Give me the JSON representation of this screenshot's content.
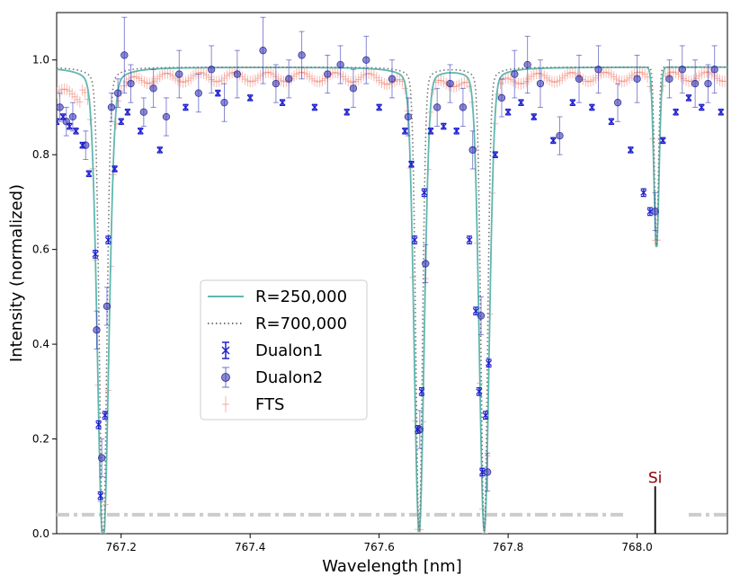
{
  "chart_data": {
    "type": "line",
    "title": "",
    "xlabel": "Wavelength [nm]",
    "ylabel": "Intensity (normalized)",
    "xlim": [
      767.1,
      768.14
    ],
    "ylim": [
      0.0,
      1.1
    ],
    "x_ticks": [
      767.2,
      767.4,
      767.6,
      767.8,
      768.0
    ],
    "x_tick_labels": [
      "767.2",
      "767.4",
      "767.6",
      "767.8",
      "768.0"
    ],
    "y_ticks": [
      0.0,
      0.2,
      0.4,
      0.6,
      0.8,
      1.0
    ],
    "y_tick_labels": [
      "0.0",
      "0.2",
      "0.4",
      "0.6",
      "0.8",
      "1.0"
    ],
    "grid": false,
    "legend_position": "center-left",
    "lines_model": {
      "continuum": 0.985,
      "absorption_lines": [
        {
          "center": 767.172,
          "depth": 0.95,
          "width_250k": 0.0085,
          "width_700k": 0.0055,
          "wing": 0.06
        },
        {
          "center": 767.662,
          "depth": 0.93,
          "width_250k": 0.0075,
          "width_700k": 0.005,
          "wing": 0.05
        },
        {
          "center": 767.763,
          "depth": 0.93,
          "width_250k": 0.0075,
          "width_700k": 0.005,
          "wing": 0.05
        },
        {
          "center": 768.03,
          "depth": 0.38,
          "width_250k": 0.004,
          "width_700k": 0.003,
          "wing": 0.0
        }
      ]
    },
    "series": [
      {
        "name": "R=250,000",
        "kind": "line",
        "color": "#5fb8b0",
        "style": "solid",
        "model_width": "width_250k",
        "step_at": 768.01,
        "post_step_continuum": 0.985,
        "pre_step_continuum": 0.985
      },
      {
        "name": "R=700,000",
        "kind": "line",
        "color": "#777777",
        "style": "dotted",
        "model_width": "width_700k"
      },
      {
        "name": "Dualon1",
        "kind": "errorbar",
        "color": "#1f1fd0",
        "marker": "x",
        "x": [
          767.1,
          767.11,
          767.12,
          767.13,
          767.14,
          767.15,
          767.16,
          767.165,
          767.168,
          767.175,
          767.18,
          767.19,
          767.2,
          767.21,
          767.23,
          767.26,
          767.3,
          767.35,
          767.4,
          767.45,
          767.5,
          767.55,
          767.6,
          767.64,
          767.65,
          767.655,
          767.66,
          767.666,
          767.67,
          767.68,
          767.7,
          767.72,
          767.74,
          767.75,
          767.755,
          767.76,
          767.765,
          767.77,
          767.78,
          767.8,
          767.82,
          767.84,
          767.87,
          767.9,
          767.93,
          767.96,
          767.99,
          768.01,
          768.02,
          768.04,
          768.06,
          768.08,
          768.1,
          768.13
        ],
        "y": [
          0.87,
          0.88,
          0.86,
          0.85,
          0.82,
          0.76,
          0.59,
          0.23,
          0.08,
          0.25,
          0.62,
          0.77,
          0.87,
          0.89,
          0.85,
          0.81,
          0.9,
          0.93,
          0.92,
          0.91,
          0.9,
          0.89,
          0.9,
          0.85,
          0.78,
          0.62,
          0.22,
          0.3,
          0.72,
          0.85,
          0.86,
          0.85,
          0.62,
          0.47,
          0.3,
          0.13,
          0.25,
          0.36,
          0.8,
          0.89,
          0.91,
          0.88,
          0.83,
          0.91,
          0.9,
          0.87,
          0.81,
          0.72,
          0.68,
          0.83,
          0.89,
          0.92,
          0.9,
          0.89
        ],
        "yerr": [
          0.006,
          0.006,
          0.006,
          0.006,
          0.006,
          0.006,
          0.008,
          0.008,
          0.008,
          0.008,
          0.008,
          0.006,
          0.006,
          0.006,
          0.006,
          0.006,
          0.006,
          0.006,
          0.006,
          0.006,
          0.006,
          0.006,
          0.006,
          0.006,
          0.006,
          0.008,
          0.008,
          0.008,
          0.008,
          0.006,
          0.006,
          0.006,
          0.008,
          0.008,
          0.008,
          0.008,
          0.008,
          0.008,
          0.006,
          0.006,
          0.006,
          0.006,
          0.006,
          0.006,
          0.006,
          0.006,
          0.006,
          0.008,
          0.008,
          0.006,
          0.006,
          0.006,
          0.006,
          0.006
        ]
      },
      {
        "name": "Dualon2",
        "kind": "errorbar",
        "color": "#3a3ab8",
        "marker": "o",
        "x": [
          767.105,
          767.115,
          767.125,
          767.145,
          767.162,
          767.17,
          767.178,
          767.185,
          767.195,
          767.205,
          767.215,
          767.235,
          767.25,
          767.27,
          767.29,
          767.32,
          767.34,
          767.36,
          767.38,
          767.42,
          767.44,
          767.46,
          767.48,
          767.52,
          767.54,
          767.56,
          767.58,
          767.62,
          767.645,
          767.663,
          767.672,
          767.69,
          767.71,
          767.73,
          767.745,
          767.758,
          767.768,
          767.79,
          767.81,
          767.83,
          767.85,
          767.88,
          767.91,
          767.94,
          767.97,
          768.0,
          768.028,
          768.05,
          768.07,
          768.09,
          768.11,
          768.12
        ],
        "y": [
          0.9,
          0.87,
          0.88,
          0.82,
          0.43,
          0.16,
          0.48,
          0.9,
          0.93,
          1.01,
          0.95,
          0.89,
          0.94,
          0.88,
          0.97,
          0.93,
          0.98,
          0.91,
          0.97,
          1.02,
          0.95,
          0.96,
          1.01,
          0.97,
          0.99,
          0.94,
          1.0,
          0.96,
          0.88,
          0.22,
          0.57,
          0.9,
          0.95,
          0.9,
          0.81,
          0.46,
          0.13,
          0.92,
          0.97,
          0.99,
          0.95,
          0.84,
          0.96,
          0.98,
          0.91,
          0.96,
          0.68,
          0.96,
          0.98,
          0.95,
          0.95,
          0.98
        ],
        "yerr": [
          0.03,
          0.03,
          0.03,
          0.03,
          0.04,
          0.04,
          0.04,
          0.03,
          0.03,
          0.08,
          0.04,
          0.03,
          0.04,
          0.04,
          0.05,
          0.04,
          0.05,
          0.04,
          0.05,
          0.07,
          0.04,
          0.04,
          0.05,
          0.04,
          0.04,
          0.04,
          0.05,
          0.04,
          0.04,
          0.04,
          0.04,
          0.04,
          0.04,
          0.04,
          0.04,
          0.04,
          0.04,
          0.04,
          0.05,
          0.06,
          0.05,
          0.04,
          0.05,
          0.05,
          0.04,
          0.05,
          0.04,
          0.04,
          0.05,
          0.05,
          0.04,
          0.05
        ]
      },
      {
        "name": "FTS",
        "kind": "errorbar",
        "color": "#f08070",
        "marker": "+",
        "model_width": "width_250k",
        "x_step": 0.004,
        "continuum_offset": -0.02,
        "yerr": 0.012
      }
    ],
    "telluric_mask": {
      "color": "#cccccc",
      "y": 0.04,
      "style": "dash-dot",
      "segments": [
        [
          767.1,
          767.98
        ],
        [
          768.08,
          768.14
        ]
      ]
    },
    "annotations": [
      {
        "text": "Si",
        "x": 768.028,
        "y_top": 0.1,
        "y_bottom": 0.0,
        "color": "#8b0000"
      }
    ]
  }
}
